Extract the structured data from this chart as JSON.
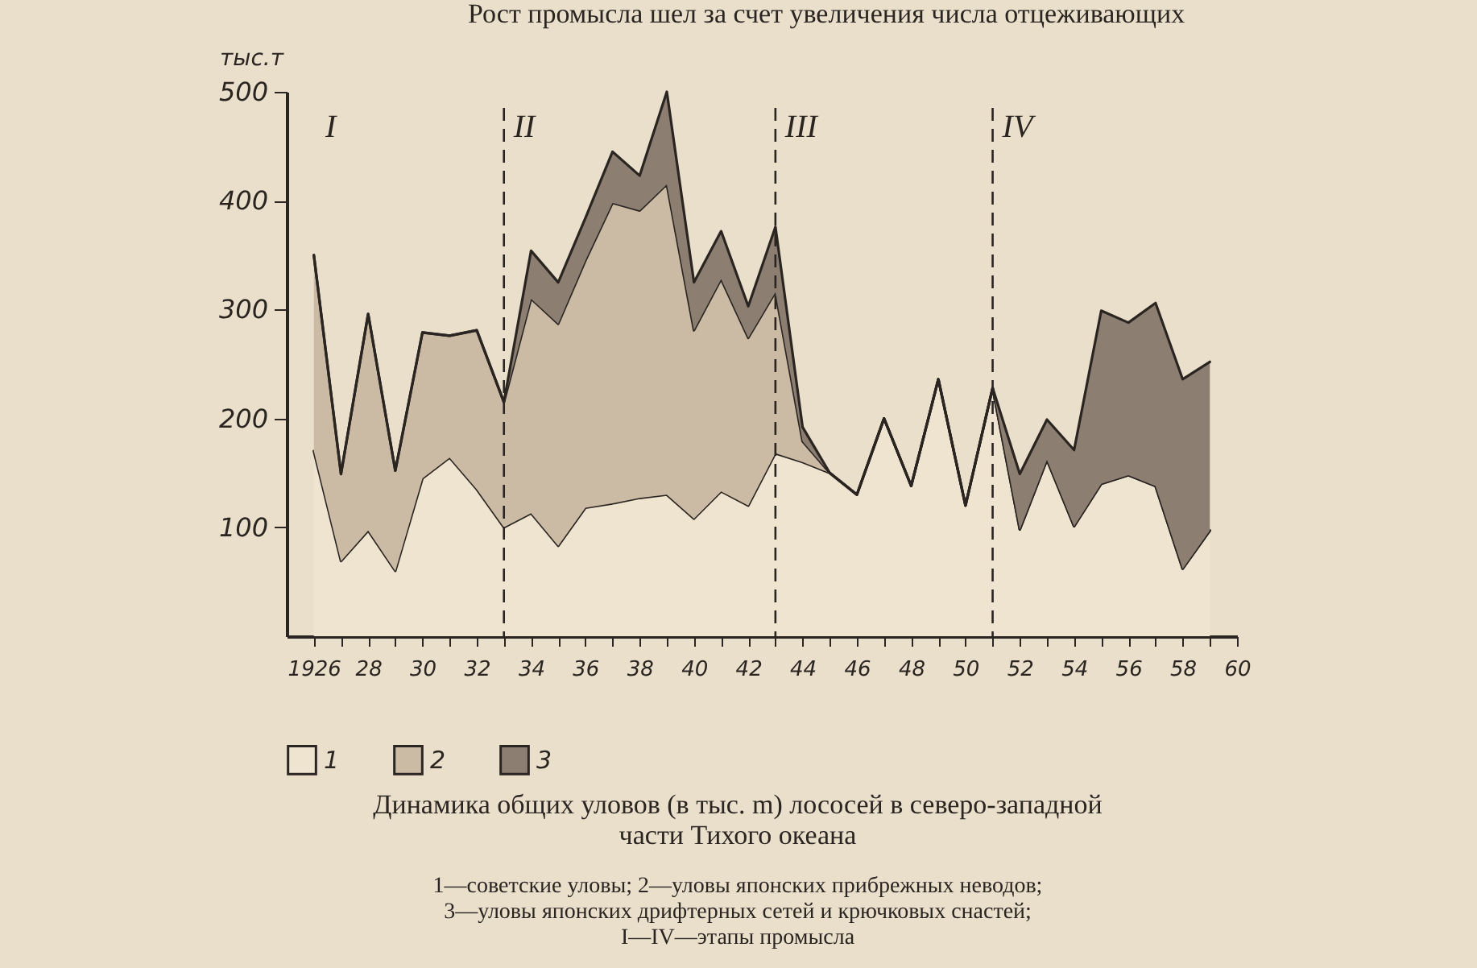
{
  "chart_data": {
    "type": "area",
    "stacked": true,
    "title": "Динамика общих уловов (в тыс. m) лососей в северо-западной части Тихого океана",
    "ylabel": "тыс.т",
    "x": [
      1926,
      1927,
      1928,
      1929,
      1930,
      1931,
      1932,
      1933,
      1934,
      1935,
      1936,
      1937,
      1938,
      1939,
      1940,
      1941,
      1942,
      1943,
      1944,
      1945,
      1946,
      1947,
      1948,
      1949,
      1950,
      1951,
      1952,
      1953,
      1954,
      1955,
      1956,
      1957,
      1958,
      1959
    ],
    "series": [
      {
        "name": "1",
        "color": "#efe4d0",
        "values": [
          170,
          69,
          97,
          60,
          145,
          164,
          135,
          100,
          113,
          83,
          118,
          122,
          127,
          130,
          108,
          133,
          120,
          168,
          160,
          150,
          130,
          200,
          138,
          236,
          120,
          228,
          98,
          162,
          101,
          140,
          148,
          138,
          62,
          97
        ]
      },
      {
        "name": "2",
        "color": "#cbbba5",
        "values": [
          180,
          80,
          199,
          92,
          134,
          112,
          146,
          115,
          197,
          204,
          227,
          276,
          264,
          285,
          173,
          195,
          154,
          148,
          19,
          0,
          0,
          0,
          0,
          0,
          0,
          0,
          0,
          0,
          0,
          0,
          0,
          0,
          0,
          0
        ]
      },
      {
        "name": "3",
        "color": "#8c7f72",
        "values": [
          0,
          0,
          0,
          0,
          0,
          0,
          0,
          0,
          44,
          38,
          39,
          47,
          32,
          85,
          44,
          44,
          29,
          60,
          13,
          0,
          0,
          0,
          0,
          0,
          0,
          0,
          51,
          37,
          70,
          159,
          140,
          168,
          174,
          155
        ]
      }
    ],
    "xlim": [
      1925,
      1960
    ],
    "xticks": [
      {
        "value": 1926,
        "label": "1926"
      },
      {
        "value": 1927,
        "label": null
      },
      {
        "value": 1928,
        "label": "28"
      },
      {
        "value": 1929,
        "label": null
      },
      {
        "value": 1930,
        "label": "30"
      },
      {
        "value": 1931,
        "label": null
      },
      {
        "value": 1932,
        "label": "32"
      },
      {
        "value": 1933,
        "label": null
      },
      {
        "value": 1934,
        "label": "34"
      },
      {
        "value": 1935,
        "label": null
      },
      {
        "value": 1936,
        "label": "36"
      },
      {
        "value": 1937,
        "label": null
      },
      {
        "value": 1938,
        "label": "38"
      },
      {
        "value": 1939,
        "label": null
      },
      {
        "value": 1940,
        "label": "40"
      },
      {
        "value": 1941,
        "label": null
      },
      {
        "value": 1942,
        "label": "42"
      },
      {
        "value": 1943,
        "label": null
      },
      {
        "value": 1944,
        "label": "44"
      },
      {
        "value": 1945,
        "label": null
      },
      {
        "value": 1946,
        "label": "46"
      },
      {
        "value": 1947,
        "label": null
      },
      {
        "value": 1948,
        "label": "48"
      },
      {
        "value": 1949,
        "label": null
      },
      {
        "value": 1950,
        "label": "50"
      },
      {
        "value": 1951,
        "label": null
      },
      {
        "value": 1952,
        "label": "52"
      },
      {
        "value": 1953,
        "label": null
      },
      {
        "value": 1954,
        "label": "54"
      },
      {
        "value": 1955,
        "label": null
      },
      {
        "value": 1956,
        "label": "56"
      },
      {
        "value": 1957,
        "label": null
      },
      {
        "value": 1958,
        "label": "58"
      },
      {
        "value": 1959,
        "label": null
      },
      {
        "value": 1960,
        "label": "60"
      }
    ],
    "ylim": [
      0,
      500
    ],
    "yticks": [
      100,
      200,
      300,
      400,
      500
    ],
    "grid": false,
    "legend": "bottom",
    "ref_lines": [
      {
        "axis": "x",
        "value": 1933,
        "label": "II",
        "line_style": "dashed"
      },
      {
        "axis": "x",
        "value": 1943,
        "label": "III",
        "line_style": "dashed"
      },
      {
        "axis": "x",
        "value": 1951,
        "label": "IV",
        "line_style": "dashed"
      }
    ],
    "annotations": [
      "I",
      "Рост промысла шел за счет увеличения числа отцеживающих",
      "1—советские уловы; 2—уловы японских прибрежных неводов; 3—уловы японских дрифтерных сетей и крючковых снастей; I—IV—этапы промысла"
    ]
  }
}
